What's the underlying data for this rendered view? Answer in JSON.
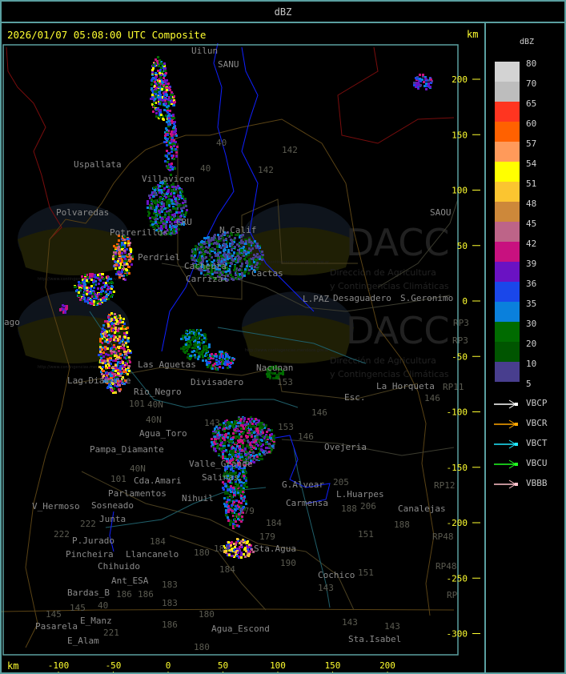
{
  "title_bar": {
    "label": "dBZ"
  },
  "map": {
    "timestamp": "2026/01/07 05:08:00 UTC Composite",
    "unit_right": "km",
    "unit_bottom": "km",
    "y_ticks": [
      "200",
      "150",
      "100",
      "50",
      "0",
      "-50",
      "-100",
      "-150",
      "-200",
      "-250",
      "-300"
    ],
    "x_ticks": [
      "-100",
      "-50",
      "0",
      "50",
      "100",
      "150",
      "200"
    ],
    "watermark": {
      "logo_text": "DACC",
      "line1": "Dirección de Agricultura",
      "line2": "y Contingencias Climáticas",
      "url": "http://www.contingencias.mendoza.gov.ar"
    },
    "places": [
      "Uspallata",
      "Villavicen",
      "Polvaredas",
      "Potrerillos",
      "CRU",
      "Cacheuta",
      "Perdriel",
      "Carrizal",
      "N.Calif",
      "Cactas",
      "L.PAZ",
      "Desaguadero",
      "S.Geronimo",
      "SAOU",
      "Nacunan",
      "La Horqueta",
      "Lag.Diamante",
      "Rio_Negro",
      "Las Aguetas",
      "Divisadero",
      "Agua_Toro",
      "Pampa_Diamante",
      "Valle_Grande",
      "Salinas",
      "Cda.Amari",
      "Parlamentos",
      "Sosneado",
      "Nihuil",
      "V_Hermoso",
      "Junta",
      "P.Jurado",
      "Pincheira",
      "Llancanelo",
      "Chihuido",
      "Ant_ESA",
      "Bardas_B",
      "E_Manz",
      "E_Alam",
      "Pasarela",
      "Agua_Escond",
      "Sta.Agua",
      "Cochico",
      "Carmensa",
      "G.Alvear",
      "L.Huarpes",
      "Ovejeria",
      "Canalejas",
      "Sta.Isabel",
      "Esc.",
      "Uilun",
      "SANU",
      "ago"
    ],
    "road_labels": [
      "40",
      "40",
      "142",
      "142",
      "143",
      "153",
      "146",
      "153",
      "146",
      "205",
      "206",
      "188",
      "188",
      "151",
      "151",
      "143",
      "143",
      "143",
      "184",
      "184",
      "180",
      "184",
      "184",
      "183",
      "183",
      "186",
      "186",
      "180",
      "186",
      "180",
      "179",
      "179",
      "190",
      "40N",
      "40N",
      "40N",
      "101",
      "101",
      "222",
      "222",
      "145",
      "145",
      "221",
      "40",
      "RP3",
      "RP3",
      "RP11",
      "146",
      "RP12",
      "RP48",
      "RP48",
      "RP"
    ]
  },
  "legend": {
    "title": "dBZ",
    "scale_labels": [
      "80",
      "70",
      "65",
      "60",
      "57",
      "54",
      "51",
      "48",
      "45",
      "42",
      "39",
      "36",
      "35",
      "30",
      "20",
      "10",
      "5"
    ],
    "scale_colors": [
      "#d3d3d3",
      "#bdbdbd",
      "#ff3520",
      "#ff6100",
      "#ff9a5a",
      "#ffff00",
      "#fbc530",
      "#cd883a",
      "#bd6488",
      "#c8117f",
      "#6a12c3",
      "#1a47ea",
      "#0a80dc",
      "#006b00",
      "#005500",
      "#483e8e"
    ],
    "vectors": [
      {
        "label": "VBCP",
        "color": "#ffffff"
      },
      {
        "label": "VBCR",
        "color": "#ffa500"
      },
      {
        "label": "VBCT",
        "color": "#20e8ff"
      },
      {
        "label": "VBCU",
        "color": "#20ff20"
      },
      {
        "label": "VBBB",
        "color": "#ffc0cb"
      }
    ]
  }
}
